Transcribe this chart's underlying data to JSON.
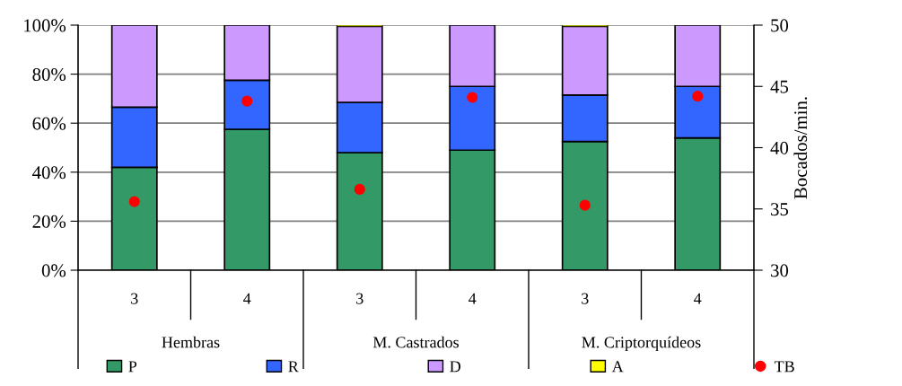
{
  "chart_data": {
    "type": "bar",
    "stacked": true,
    "categories": [
      "3",
      "4",
      "3",
      "4",
      "3",
      "4"
    ],
    "series": [
      {
        "name": "P",
        "color": "#339966",
        "values": [
          42,
          57.5,
          48,
          49,
          52.5,
          54
        ]
      },
      {
        "name": "R",
        "color": "#3366ff",
        "values": [
          24.5,
          20,
          20.5,
          26,
          19,
          21
        ]
      },
      {
        "name": "D",
        "color": "#cc99ff",
        "values": [
          33.5,
          22.5,
          31,
          25,
          28,
          25
        ]
      },
      {
        "name": "A",
        "color": "#ffff00",
        "values": [
          null,
          null,
          0.5,
          null,
          0.5,
          null
        ]
      },
      {
        "name": "TB",
        "type": "scatter",
        "axis": "y2",
        "color": "#ff0000",
        "marker": "circle",
        "values": [
          35.6,
          43.8,
          36.6,
          44.1,
          35.3,
          44.2
        ]
      }
    ],
    "ylim": [
      0,
      100
    ],
    "yticks": [
      {
        "value": 0,
        "label": "0%"
      },
      {
        "value": 20,
        "label": "20%"
      },
      {
        "value": 40,
        "label": "40%"
      },
      {
        "value": 60,
        "label": "60%"
      },
      {
        "value": 80,
        "label": "80%"
      },
      {
        "value": 100,
        "label": "100%"
      }
    ],
    "y2lim": [
      30,
      50
    ],
    "y2ticks": [
      30,
      35,
      40,
      45,
      50
    ],
    "y2label": "Bocados/min.",
    "annotations": [
      "Hembras",
      "M. Castrados",
      "M. Criptorquídeos"
    ],
    "grid": "y",
    "legend": "bottom"
  }
}
